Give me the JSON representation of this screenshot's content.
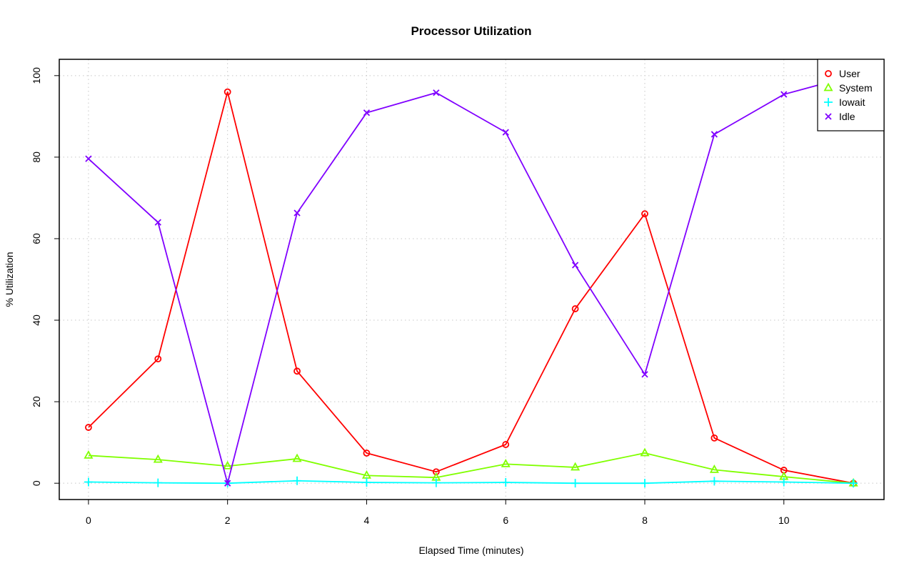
{
  "chart_data": {
    "type": "line",
    "title": "Processor Utilization",
    "xlabel": "Elapsed Time (minutes)",
    "ylabel": "% Utilization",
    "xlim": [
      -0.42,
      11.44
    ],
    "ylim": [
      -4,
      104
    ],
    "xticks": [
      0,
      2,
      4,
      6,
      8,
      10
    ],
    "yticks": [
      0,
      20,
      40,
      60,
      80,
      100
    ],
    "grid": true,
    "legend_position": "top-right",
    "x": [
      0,
      1,
      2,
      3,
      4,
      5,
      6,
      7,
      8,
      9,
      10,
      11
    ],
    "series": [
      {
        "name": "User",
        "color": "#ff0000",
        "marker": "circle",
        "values": [
          13.7,
          30.5,
          96.0,
          27.5,
          7.4,
          2.8,
          9.5,
          42.8,
          66.1,
          11.1,
          3.2,
          0.0
        ]
      },
      {
        "name": "System",
        "color": "#80ff00",
        "marker": "triangle",
        "values": [
          6.8,
          5.8,
          4.2,
          6.0,
          1.9,
          1.4,
          4.7,
          3.9,
          7.4,
          3.3,
          1.6,
          0.0
        ]
      },
      {
        "name": "Iowait",
        "color": "#00ffff",
        "marker": "plus",
        "values": [
          0.3,
          0.1,
          0.0,
          0.6,
          0.2,
          0.1,
          0.2,
          0.0,
          0.0,
          0.5,
          0.3,
          0.0
        ]
      },
      {
        "name": "Idle",
        "color": "#8000ff",
        "marker": "cross",
        "values": [
          79.6,
          64.0,
          0.0,
          66.3,
          90.9,
          95.8,
          86.1,
          53.5,
          26.7,
          85.6,
          95.4,
          100.0
        ]
      }
    ]
  }
}
